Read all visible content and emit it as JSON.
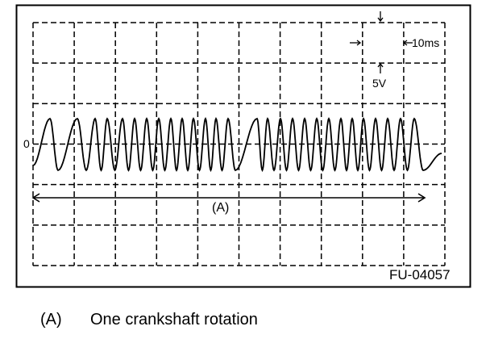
{
  "figure": {
    "id_label": "FU-04057",
    "zero_label": "0",
    "time_scale_label": "10ms",
    "voltage_scale_label": "5V",
    "span_label": "(A)",
    "grid": {
      "horizontal_divisions": 10,
      "vertical_divisions": 6,
      "style": "dashed"
    },
    "colors": {
      "line": "#000000",
      "background": "#ffffff"
    }
  },
  "legend": {
    "key": "(A)",
    "text": "One crankshaft rotation"
  }
}
